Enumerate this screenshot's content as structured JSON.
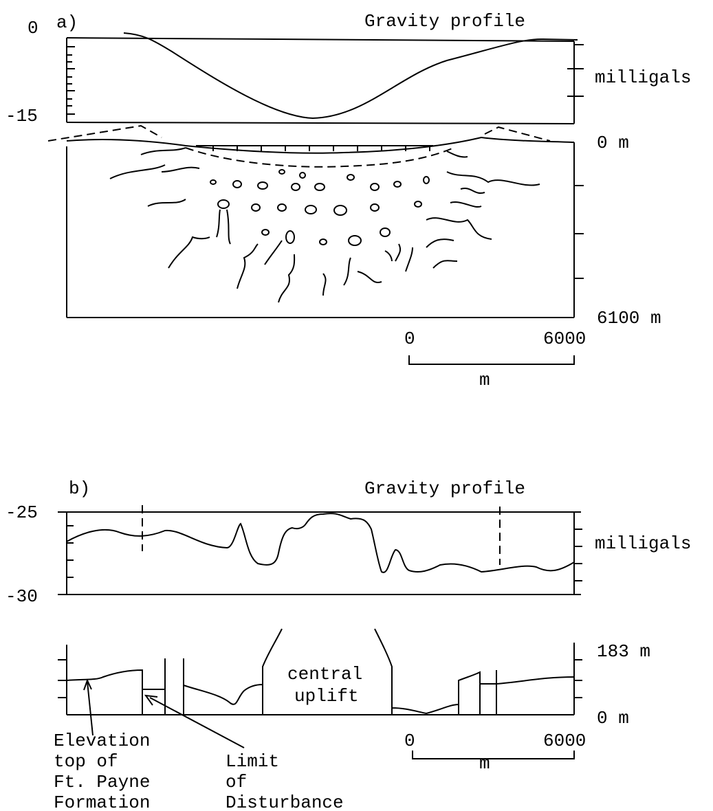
{
  "panel_a": {
    "label": "a)",
    "title": "Gravity profile",
    "gravity_axis": {
      "top": "0",
      "bottom": "-15",
      "unit": "milligals"
    },
    "depth_axis": {
      "top": "0 m",
      "bottom": "6100 m"
    },
    "scale": {
      "start": "0",
      "end": "6000",
      "unit": "m"
    }
  },
  "panel_b": {
    "label": "b)",
    "title": "Gravity profile",
    "gravity_axis": {
      "top": "-25",
      "bottom": "-30",
      "unit": "milligals"
    },
    "elevation_axis": {
      "top": "183 m",
      "bottom": "0 m"
    },
    "center_label": [
      "central",
      "uplift"
    ],
    "scale": {
      "start": "0",
      "end": "6000",
      "unit": "m"
    },
    "annotations": [
      [
        "Elevation",
        "top of",
        "Ft. Payne",
        "Formation"
      ],
      [
        "Limit",
        "of",
        "Disturbance"
      ]
    ]
  }
}
